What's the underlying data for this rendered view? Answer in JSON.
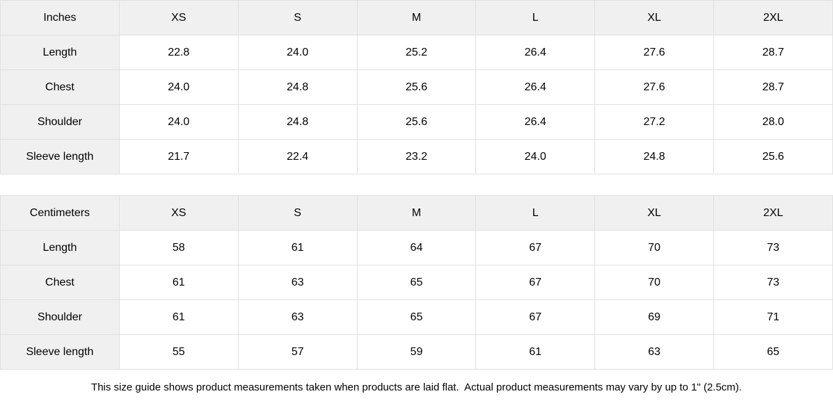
{
  "colors": {
    "header_background": "#f0f0f0",
    "cell_background": "#ffffff",
    "border": "#e0e0e0",
    "text": "#000000"
  },
  "chart_data": [
    {
      "type": "table",
      "title": "Inches",
      "columns": [
        "Inches",
        "XS",
        "S",
        "M",
        "L",
        "XL",
        "2XL"
      ],
      "rows": [
        {
          "label": "Length",
          "values": [
            "22.8",
            "24.0",
            "25.2",
            "26.4",
            "27.6",
            "28.7"
          ]
        },
        {
          "label": "Chest",
          "values": [
            "24.0",
            "24.8",
            "25.6",
            "26.4",
            "27.6",
            "28.7"
          ]
        },
        {
          "label": "Shoulder",
          "values": [
            "24.0",
            "24.8",
            "25.6",
            "26.4",
            "27.2",
            "28.0"
          ]
        },
        {
          "label": "Sleeve length",
          "values": [
            "21.7",
            "22.4",
            "23.2",
            "24.0",
            "24.8",
            "25.6"
          ]
        }
      ]
    },
    {
      "type": "table",
      "title": "Centimeters",
      "columns": [
        "Centimeters",
        "XS",
        "S",
        "M",
        "L",
        "XL",
        "2XL"
      ],
      "rows": [
        {
          "label": "Length",
          "values": [
            "58",
            "61",
            "64",
            "67",
            "70",
            "73"
          ]
        },
        {
          "label": "Chest",
          "values": [
            "61",
            "63",
            "65",
            "67",
            "70",
            "73"
          ]
        },
        {
          "label": "Shoulder",
          "values": [
            "61",
            "63",
            "65",
            "67",
            "69",
            "71"
          ]
        },
        {
          "label": "Sleeve length",
          "values": [
            "55",
            "57",
            "59",
            "61",
            "63",
            "65"
          ]
        }
      ]
    }
  ],
  "footnote": "This size guide shows product measurements taken when products are laid flat.  Actual product measurements may vary by up to 1\" (2.5cm)."
}
